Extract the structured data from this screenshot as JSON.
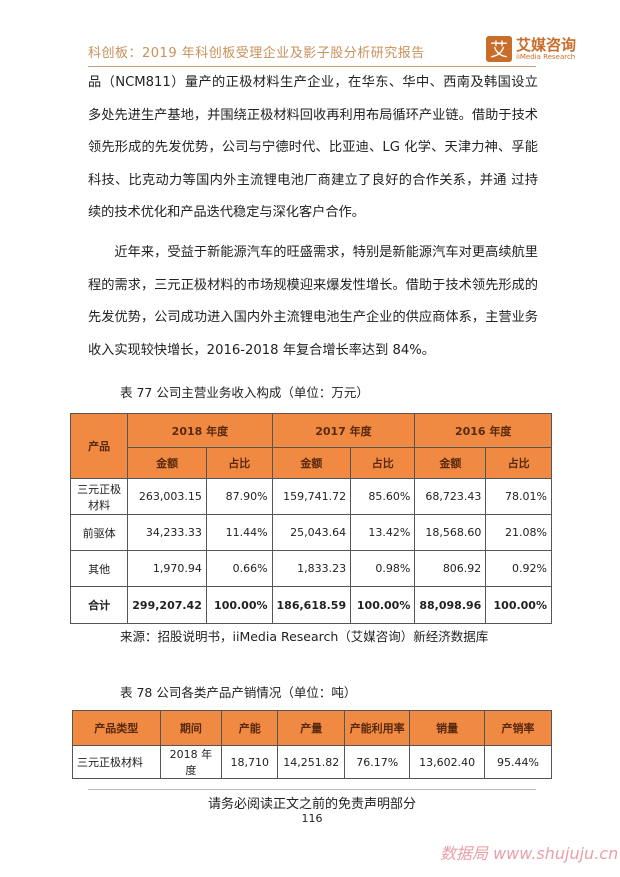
{
  "header": {
    "title": "科创板：2019 年科创板受理企业及影子股分析研究报告",
    "logo_cn": "艾媒咨询",
    "logo_en": "iiMedia Research",
    "logo_mark": "艾"
  },
  "paragraphs": [
    "品（NCM811）量产的正极材料生产企业，在华东、华中、西南及韩国设立多处先进生产基地，并围绕正极材料回收再利用布局循环产业链。借助于技术领先形成的先发优势，公司与宁德时代、比亚迪、LG 化学、天津力神、孚能科技、比克动力等国内外主流锂电池厂商建立了良好的合作关系，并通 过持续的技术优化和产品迭代稳定与深化客户合作。",
    "近年来，受益于新能源汽车的旺盛需求，特别是新能源汽车对更高续航里程的需求，三元正极材料的市场规模迎来爆发性增长。借助于技术领先形成的先发优势，公司成功进入国内外主流锂电池生产企业的供应商体系，主营业务收入实现较快增长，2016-2018 年复合增长率达到 84%。"
  ],
  "table77": {
    "caption": "表 77 公司主营业务收入构成（单位：万元）",
    "product_header": "产品",
    "years": [
      "2018 年度",
      "2017 年度",
      "2016 年度"
    ],
    "subheaders": [
      "金额",
      "占比"
    ],
    "rows": [
      {
        "name": "三元正极材料",
        "cells": [
          "263,003.15",
          "87.90%",
          "159,741.72",
          "85.60%",
          "68,723.43",
          "78.01%"
        ]
      },
      {
        "name": "前驱体",
        "cells": [
          "34,233.33",
          "11.44%",
          "25,043.64",
          "13.42%",
          "18,568.60",
          "21.08%"
        ]
      },
      {
        "name": "其他",
        "cells": [
          "1,970.94",
          "0.66%",
          "1,833.23",
          "0.98%",
          "806.92",
          "0.92%"
        ]
      },
      {
        "name": "合计",
        "cells": [
          "299,207.42",
          "100.00%",
          "186,618.59",
          "100.00%",
          "88,098.96",
          "100.00%"
        ]
      }
    ],
    "source": "来源：招股说明书，iiMedia Research（艾媒咨询）新经济数据库"
  },
  "table78": {
    "caption": "表 78 公司各类产品产销情况（单位：吨）",
    "headers": [
      "产品类型",
      "期间",
      "产能",
      "产量",
      "产能利用率",
      "销量",
      "产销率"
    ],
    "row": [
      "三元正极材料",
      "2018 年度",
      "18,710",
      "14,251.82",
      "76.17%",
      "13,602.40",
      "95.44%"
    ]
  },
  "footer": {
    "disclaimer": "请务必阅读正文之前的免责声明部分",
    "page": "116"
  },
  "watermark": "数据局 www.shujuju.cn",
  "colors": {
    "accent": "#f08a42"
  }
}
